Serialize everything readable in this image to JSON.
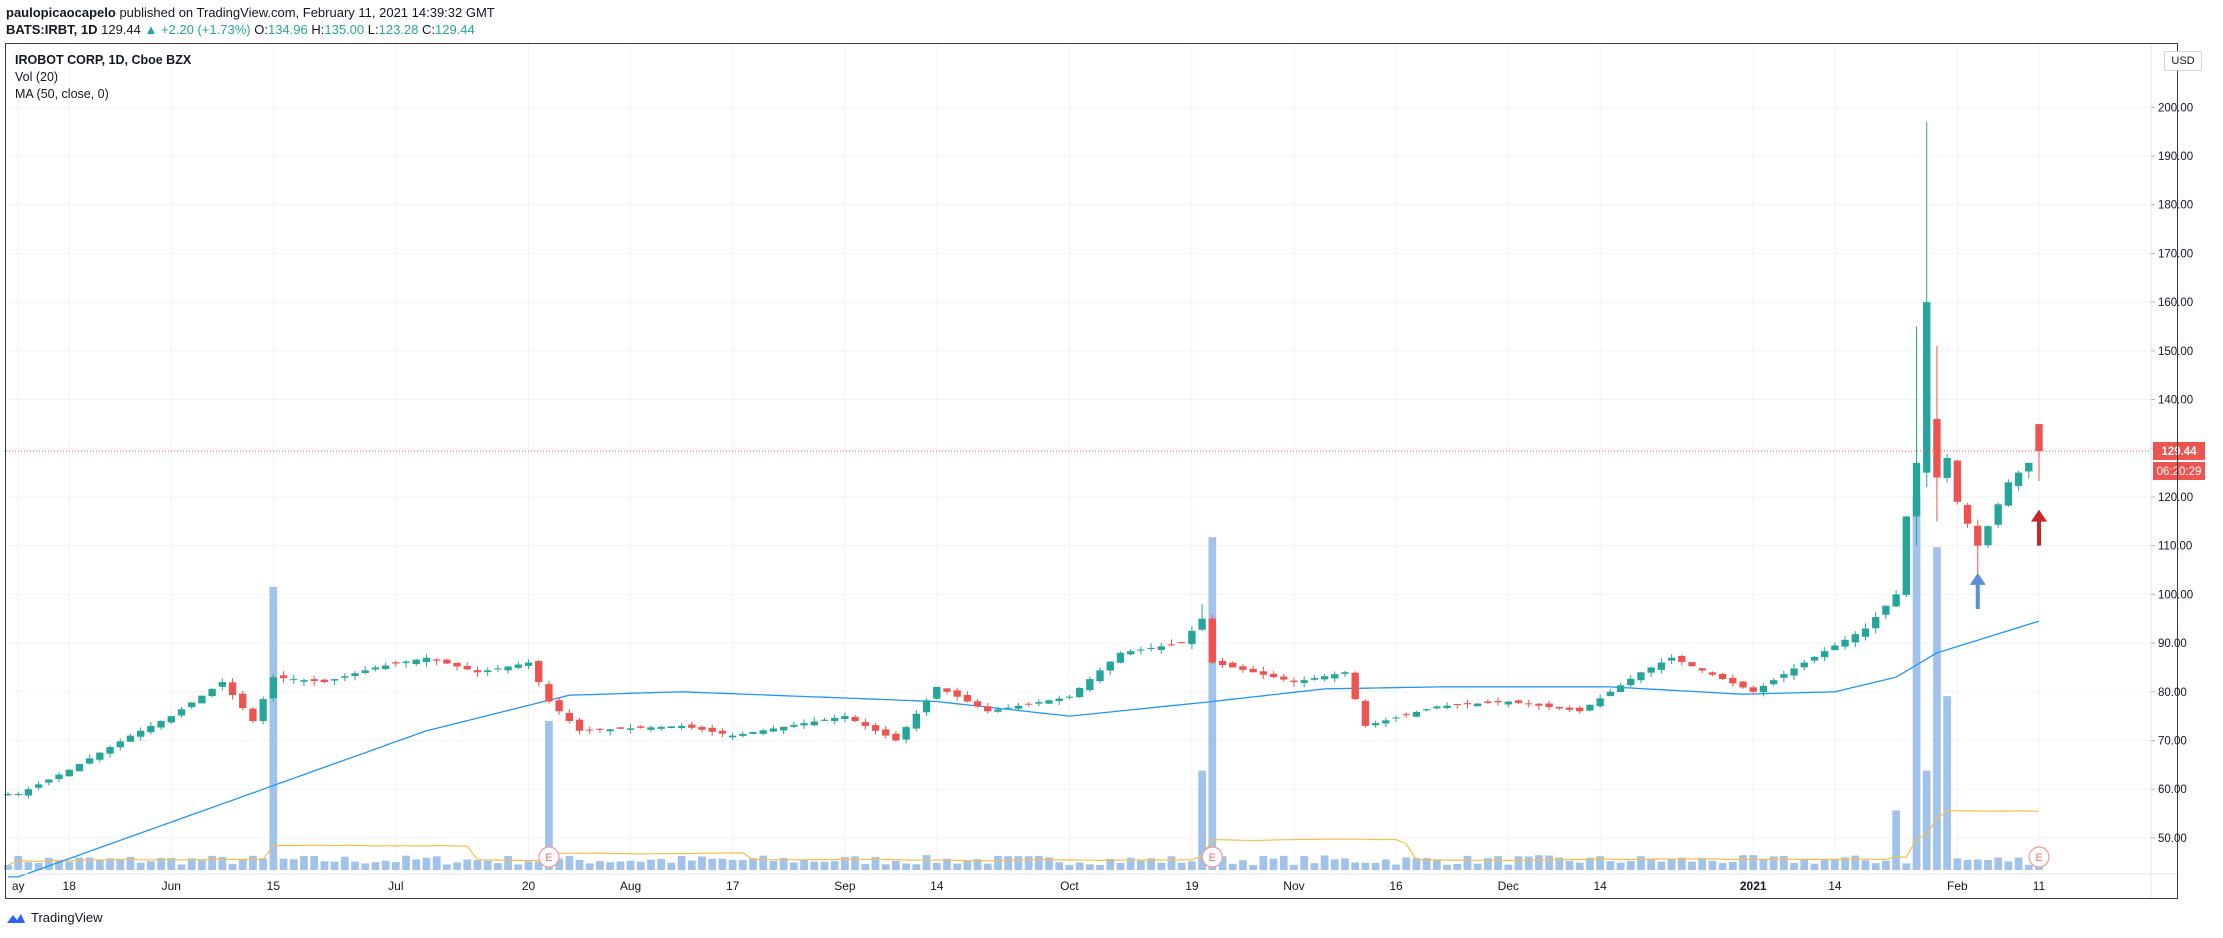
{
  "header": {
    "author": "paulopicaocapelo",
    "published_text": "published on TradingView.com, February 11, 2021 14:39:32 GMT",
    "symbol": "BATS:IRBT, 1D",
    "last": "129.44",
    "change": "+2.20 (+1.73%)",
    "o_label": "O:",
    "o_value": "134.96",
    "h_label": "H:",
    "h_value": "135.00",
    "l_label": "L:",
    "l_value": "123.28",
    "c_label": "C:",
    "c_value": "129.44"
  },
  "legend": {
    "title": "IROBOT CORP, 1D, Cboe BZX",
    "vol": "Vol (20)",
    "ma": "MA (50, close, 0)"
  },
  "currency_label": "USD",
  "price_badge": "129.44",
  "countdown_badge": "06:20:29",
  "earnings_marker": "E",
  "brand": "TradingView",
  "colors": {
    "up": "#26a69a",
    "down": "#ef5350",
    "ma": "#2196f3",
    "vol_ma": "#f5c04a",
    "volume": "#90b8e8",
    "arrow_up_blue": "#5b8fd6",
    "arrow_up_red": "#c62828",
    "price_line": "#ef5350"
  },
  "chart_data": {
    "type": "candlestick",
    "y_ticks": [
      "50.00",
      "60.00",
      "70.00",
      "80.00",
      "90.00",
      "100.00",
      "110.00",
      "120.00",
      "130.00",
      "140.00",
      "150.00",
      "160.00",
      "170.00",
      "180.00",
      "190.00",
      "200.00"
    ],
    "x_ticks": [
      {
        "label": "ay",
        "date": "2020-05-11"
      },
      {
        "label": "18",
        "date": "2020-05-18"
      },
      {
        "label": "Jun",
        "date": "2020-06-01"
      },
      {
        "label": "15",
        "date": "2020-06-15"
      },
      {
        "label": "Jul",
        "date": "2020-07-01"
      },
      {
        "label": "20",
        "date": "2020-07-20"
      },
      {
        "label": "Aug",
        "date": "2020-08-03"
      },
      {
        "label": "17",
        "date": "2020-08-17"
      },
      {
        "label": "Sep",
        "date": "2020-09-01"
      },
      {
        "label": "14",
        "date": "2020-09-14"
      },
      {
        "label": "Oct",
        "date": "2020-10-01"
      },
      {
        "label": "19",
        "date": "2020-10-19"
      },
      {
        "label": "Nov",
        "date": "2020-11-02"
      },
      {
        "label": "16",
        "date": "2020-11-16"
      },
      {
        "label": "Dec",
        "date": "2020-12-01"
      },
      {
        "label": "14",
        "date": "2020-12-14"
      },
      {
        "label": "2021",
        "date": "2021-01-04"
      },
      {
        "label": "14",
        "date": "2021-01-14"
      },
      {
        "label": "Feb",
        "date": "2021-02-01"
      },
      {
        "label": "11",
        "date": "2021-02-11"
      }
    ],
    "price_range": [
      43,
      213
    ],
    "last_price": 129.44,
    "earnings_dates": [
      "2020-07-22",
      "2020-10-21",
      "2021-02-11"
    ],
    "annotations": [
      {
        "type": "arrow-up",
        "date": "2021-02-03",
        "price_from": 97,
        "price_to": 104,
        "color": "blue"
      },
      {
        "type": "arrow-up",
        "date": "2021-02-11",
        "price_from": 110,
        "price_to": 117,
        "color": "red"
      }
    ],
    "ma_anchors": [
      {
        "date": "2020-05-11",
        "price": 42
      },
      {
        "date": "2020-06-08",
        "price": 57
      },
      {
        "date": "2020-07-06",
        "price": 72
      },
      {
        "date": "2020-07-24",
        "price": 79.3
      },
      {
        "date": "2020-08-10",
        "price": 80
      },
      {
        "date": "2020-09-14",
        "price": 78
      },
      {
        "date": "2020-10-01",
        "price": 75
      },
      {
        "date": "2020-10-21",
        "price": 78
      },
      {
        "date": "2020-11-05",
        "price": 80.6
      },
      {
        "date": "2020-11-20",
        "price": 81
      },
      {
        "date": "2020-12-15",
        "price": 81
      },
      {
        "date": "2021-01-01",
        "price": 79.5
      },
      {
        "date": "2021-01-14",
        "price": 80
      },
      {
        "date": "2021-01-22",
        "price": 83
      },
      {
        "date": "2021-01-28",
        "price": 88
      },
      {
        "date": "2021-02-11",
        "price": 94.5
      }
    ],
    "close_anchors": [
      {
        "date": "2020-05-11",
        "price": 59
      },
      {
        "date": "2020-05-18",
        "price": 64
      },
      {
        "date": "2020-05-26",
        "price": 71
      },
      {
        "date": "2020-06-01",
        "price": 75
      },
      {
        "date": "2020-06-08",
        "price": 82
      },
      {
        "date": "2020-06-11",
        "price": 74
      },
      {
        "date": "2020-06-15",
        "price": 83
      },
      {
        "date": "2020-06-22",
        "price": 82
      },
      {
        "date": "2020-06-29",
        "price": 85
      },
      {
        "date": "2020-07-06",
        "price": 87
      },
      {
        "date": "2020-07-13",
        "price": 84
      },
      {
        "date": "2020-07-20",
        "price": 86
      },
      {
        "date": "2020-07-22",
        "price": 78
      },
      {
        "date": "2020-07-27",
        "price": 72
      },
      {
        "date": "2020-08-10",
        "price": 73
      },
      {
        "date": "2020-08-17",
        "price": 71
      },
      {
        "date": "2020-09-01",
        "price": 75
      },
      {
        "date": "2020-09-08",
        "price": 70
      },
      {
        "date": "2020-09-14",
        "price": 81
      },
      {
        "date": "2020-09-21",
        "price": 76
      },
      {
        "date": "2020-10-01",
        "price": 79
      },
      {
        "date": "2020-10-08",
        "price": 88
      },
      {
        "date": "2020-10-16",
        "price": 90
      },
      {
        "date": "2020-10-20",
        "price": 95
      },
      {
        "date": "2020-10-21",
        "price": 86
      },
      {
        "date": "2020-11-02",
        "price": 82
      },
      {
        "date": "2020-11-09",
        "price": 84
      },
      {
        "date": "2020-11-11",
        "price": 73
      },
      {
        "date": "2020-11-20",
        "price": 77
      },
      {
        "date": "2020-12-01",
        "price": 78
      },
      {
        "date": "2020-12-10",
        "price": 76
      },
      {
        "date": "2020-12-18",
        "price": 84
      },
      {
        "date": "2020-12-23",
        "price": 87
      },
      {
        "date": "2021-01-04",
        "price": 80
      },
      {
        "date": "2021-01-11",
        "price": 86
      },
      {
        "date": "2021-01-19",
        "price": 93
      },
      {
        "date": "2021-01-22",
        "price": 100
      },
      {
        "date": "2021-01-25",
        "price": 116
      },
      {
        "date": "2021-01-26",
        "price": 127
      },
      {
        "date": "2021-01-27",
        "price": 160
      },
      {
        "date": "2021-01-28",
        "price": 124
      },
      {
        "date": "2021-01-29",
        "price": 128
      },
      {
        "date": "2021-02-01",
        "price": 119
      },
      {
        "date": "2021-02-03",
        "price": 110
      },
      {
        "date": "2021-02-04",
        "price": 114
      },
      {
        "date": "2021-02-08",
        "price": 123
      },
      {
        "date": "2021-02-10",
        "price": 127
      },
      {
        "date": "2021-02-11",
        "price": 129.44
      }
    ],
    "last_candle": {
      "date": "2021-02-11",
      "open": 134.96,
      "high": 135.0,
      "low": 123.28,
      "close": 129.44
    },
    "volume_spikes": [
      {
        "date": "2020-06-15",
        "level": 0.57
      },
      {
        "date": "2020-07-22",
        "level": 0.3
      },
      {
        "date": "2020-10-21",
        "level": 0.67
      },
      {
        "date": "2020-10-20",
        "level": 0.2
      },
      {
        "date": "2021-01-26",
        "level": 0.75
      },
      {
        "date": "2021-01-27",
        "level": 0.2
      },
      {
        "date": "2021-01-28",
        "level": 0.65
      },
      {
        "date": "2021-01-29",
        "level": 0.35
      },
      {
        "date": "2021-01-22",
        "level": 0.12
      }
    ]
  }
}
